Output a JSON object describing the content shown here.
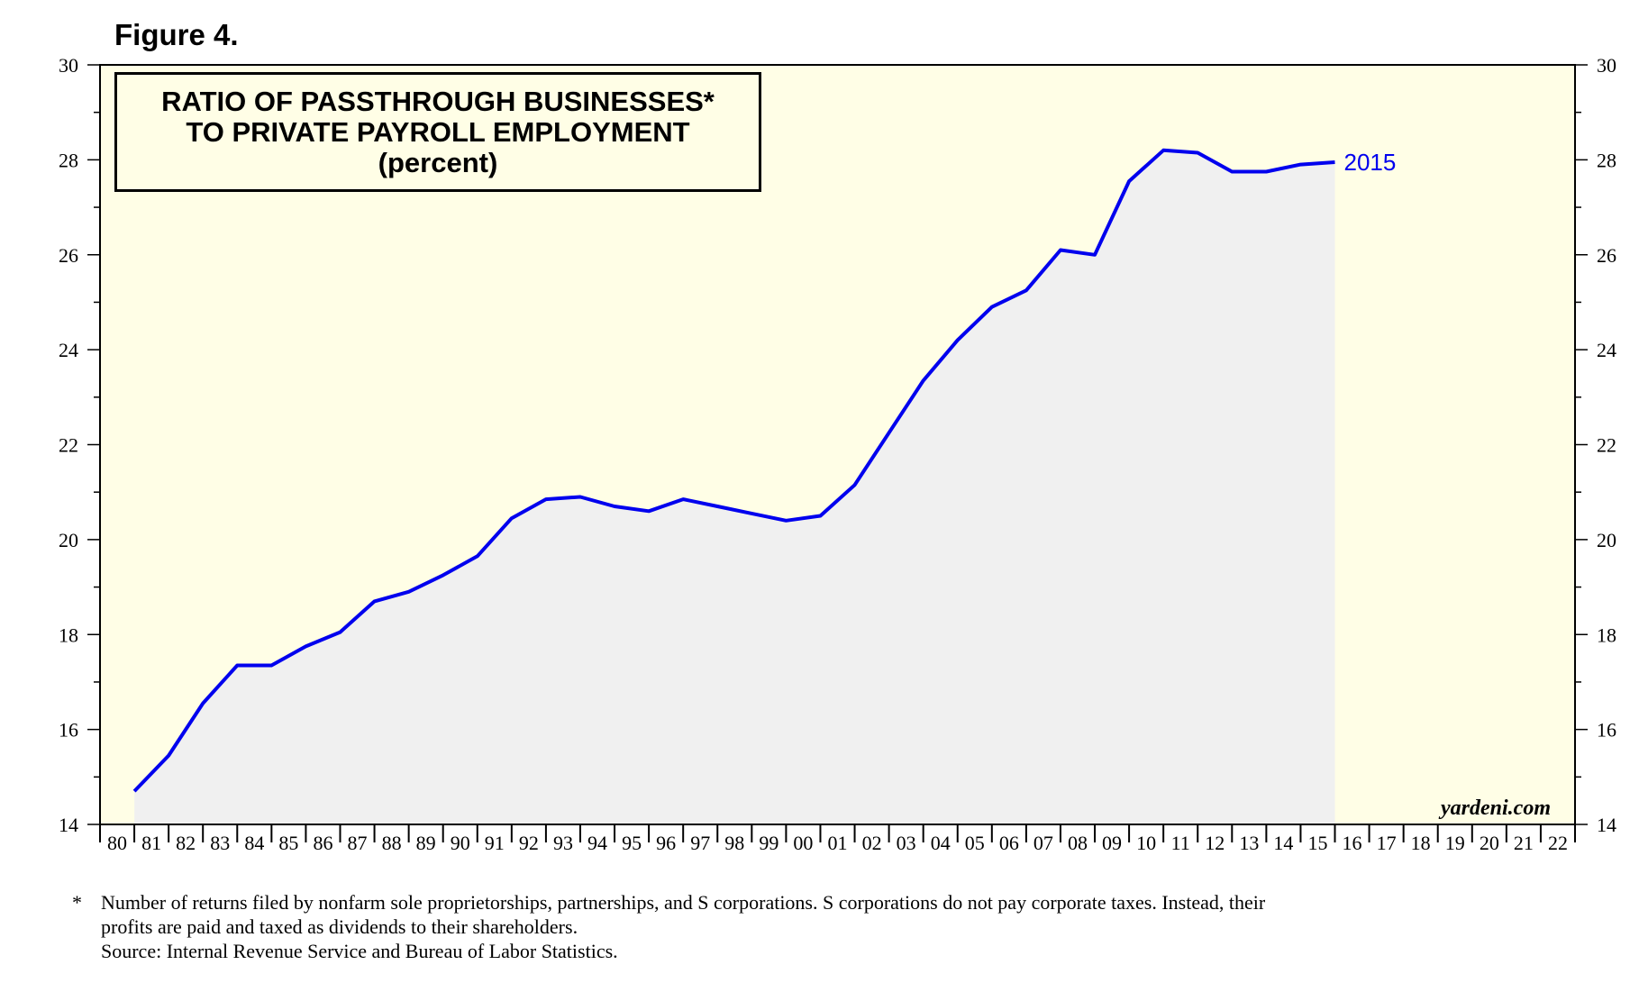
{
  "figure_label": "Figure 4.",
  "chart_title": {
    "line1": "RATIO OF PASSTHROUGH BUSINESSES*",
    "line2": "TO PRIVATE PAYROLL EMPLOYMENT",
    "line3": "(percent)"
  },
  "watermark": "yardeni.com",
  "end_label": "2015",
  "colors": {
    "plot_background": "#fffee6",
    "area_fill": "#f0f0f0",
    "line": "#0000ee",
    "end_label": "#0000ee"
  },
  "footnote": {
    "star": "*",
    "line1": "Number of  returns filed by nonfarm sole proprietorships, partnerships, and S corporations. S corporations do not pay corporate taxes. Instead, their",
    "line2": "profits are paid and taxed as dividends to their shareholders.",
    "line3": "Source: Internal Revenue Service and Bureau of Labor Statistics."
  },
  "chart_data": {
    "type": "area",
    "title": "RATIO OF PASSTHROUGH BUSINESSES* TO PRIVATE PAYROLL EMPLOYMENT (percent)",
    "x_tick_labels": [
      "80",
      "81",
      "82",
      "83",
      "84",
      "85",
      "86",
      "87",
      "88",
      "89",
      "90",
      "91",
      "92",
      "93",
      "94",
      "95",
      "96",
      "97",
      "98",
      "99",
      "00",
      "01",
      "02",
      "03",
      "04",
      "05",
      "06",
      "07",
      "08",
      "09",
      "10",
      "11",
      "12",
      "13",
      "14",
      "15",
      "16",
      "17",
      "18",
      "19",
      "20",
      "21",
      "22"
    ],
    "xlim": [
      1980,
      2023
    ],
    "ylim": [
      14,
      30
    ],
    "y_ticks": [
      14,
      16,
      18,
      20,
      22,
      24,
      26,
      28,
      30
    ],
    "y_axis_both_sides": true,
    "grid": false,
    "series": [
      {
        "x": [
          1981,
          1982,
          1983,
          1984,
          1985,
          1986,
          1987,
          1988,
          1989,
          1990,
          1991,
          1992,
          1993,
          1994,
          1995,
          1996,
          1997,
          1998,
          1999,
          2000,
          2001,
          2002,
          2003,
          2004,
          2005,
          2006,
          2007,
          2008,
          2009,
          2010,
          2011,
          2012,
          2013,
          2014,
          2015,
          2016
        ],
        "values": [
          14.7,
          15.45,
          16.55,
          17.35,
          17.35,
          17.75,
          18.05,
          18.7,
          18.9,
          19.25,
          19.65,
          20.45,
          20.85,
          20.9,
          20.7,
          20.6,
          20.85,
          20.7,
          20.55,
          20.4,
          20.5,
          21.15,
          22.25,
          23.35,
          24.2,
          24.9,
          25.25,
          26.1,
          26.0,
          27.55,
          28.2,
          28.15,
          27.75,
          27.75,
          27.9,
          27.95
        ]
      }
    ],
    "annotations": [
      "2015",
      "yardeni.com"
    ]
  }
}
